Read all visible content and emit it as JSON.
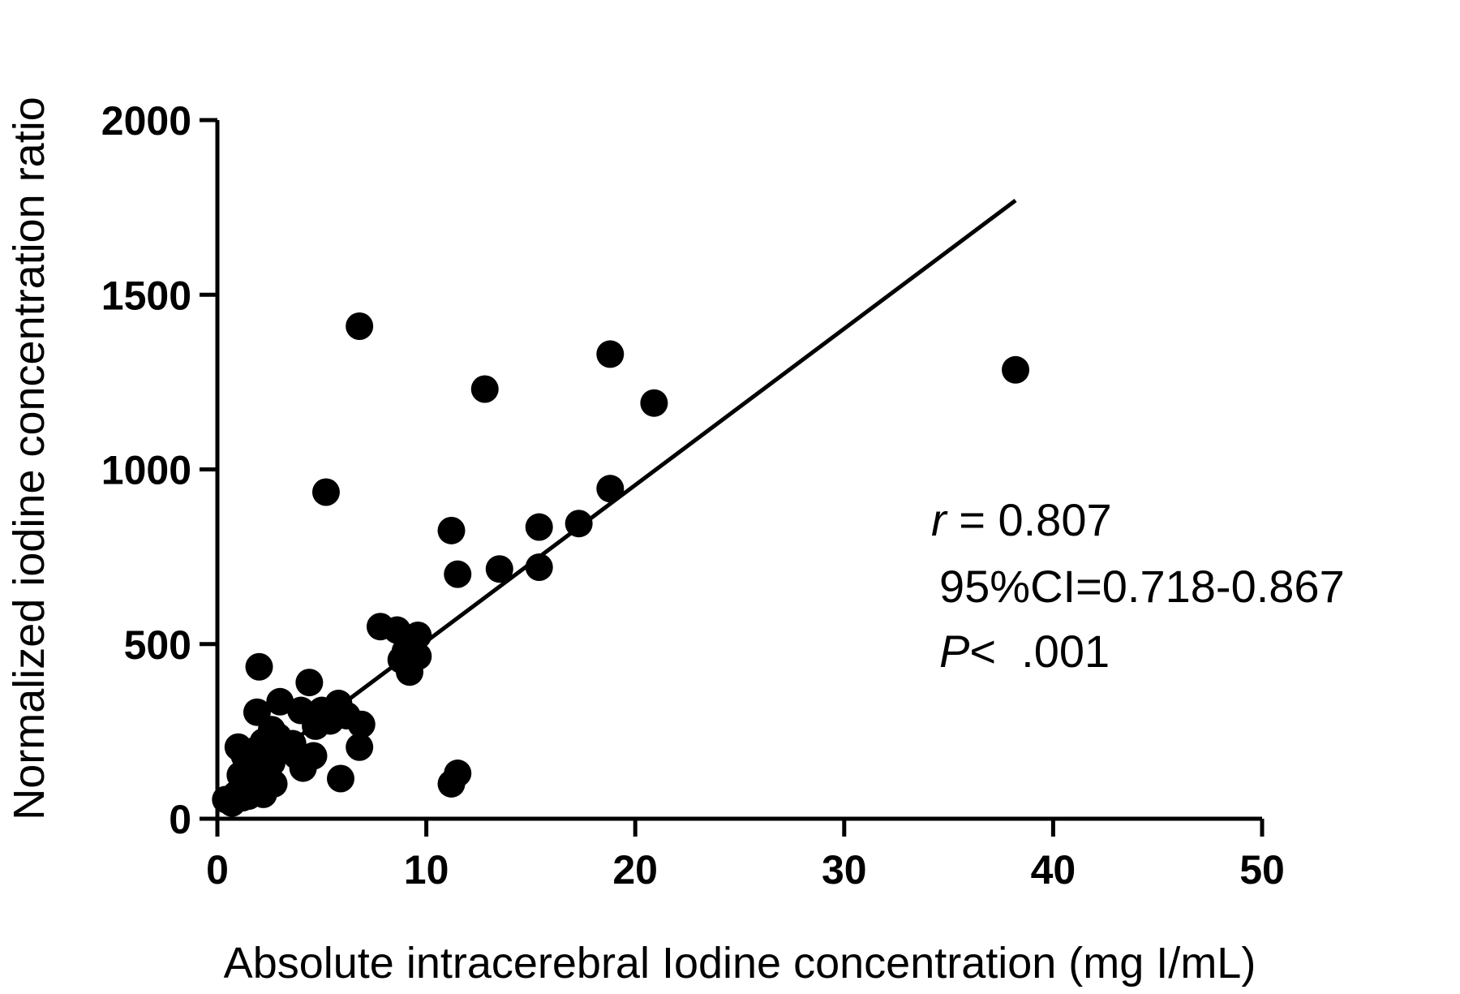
{
  "chart_data": {
    "type": "scatter",
    "xlabel": "Absolute intracerebral Iodine concentration (mg I/mL)",
    "ylabel": "Normalized iodine concentration ratio",
    "xlim": [
      0,
      50
    ],
    "ylim": [
      0,
      2000
    ],
    "xticks": [
      "0",
      "10",
      "20",
      "30",
      "40",
      "50"
    ],
    "yticks": [
      "0",
      "500",
      "1000",
      "1500",
      "2000"
    ],
    "grid": false,
    "points": [
      {
        "x": 6.8,
        "y": 1410
      },
      {
        "x": 18.8,
        "y": 1330
      },
      {
        "x": 38.2,
        "y": 1285
      },
      {
        "x": 12.8,
        "y": 1230
      },
      {
        "x": 20.9,
        "y": 1190
      },
      {
        "x": 5.2,
        "y": 935
      },
      {
        "x": 18.8,
        "y": 945
      },
      {
        "x": 11.2,
        "y": 825
      },
      {
        "x": 15.4,
        "y": 835
      },
      {
        "x": 17.3,
        "y": 845
      },
      {
        "x": 11.5,
        "y": 700
      },
      {
        "x": 13.5,
        "y": 715
      },
      {
        "x": 15.4,
        "y": 720
      },
      {
        "x": 7.8,
        "y": 550
      },
      {
        "x": 8.6,
        "y": 540
      },
      {
        "x": 9.6,
        "y": 525
      },
      {
        "x": 9.0,
        "y": 480
      },
      {
        "x": 8.8,
        "y": 455
      },
      {
        "x": 9.6,
        "y": 465
      },
      {
        "x": 9.2,
        "y": 420
      },
      {
        "x": 2.0,
        "y": 435
      },
      {
        "x": 4.4,
        "y": 390
      },
      {
        "x": 3.0,
        "y": 335
      },
      {
        "x": 5.8,
        "y": 330
      },
      {
        "x": 5.0,
        "y": 310
      },
      {
        "x": 4.0,
        "y": 310
      },
      {
        "x": 1.9,
        "y": 305
      },
      {
        "x": 6.2,
        "y": 295
      },
      {
        "x": 6.9,
        "y": 270
      },
      {
        "x": 5.4,
        "y": 280
      },
      {
        "x": 4.7,
        "y": 265
      },
      {
        "x": 2.6,
        "y": 255
      },
      {
        "x": 2.2,
        "y": 220
      },
      {
        "x": 3.6,
        "y": 215
      },
      {
        "x": 1.0,
        "y": 205
      },
      {
        "x": 1.8,
        "y": 195
      },
      {
        "x": 6.8,
        "y": 205
      },
      {
        "x": 4.6,
        "y": 180
      },
      {
        "x": 3.8,
        "y": 180
      },
      {
        "x": 2.6,
        "y": 160
      },
      {
        "x": 1.6,
        "y": 150
      },
      {
        "x": 4.1,
        "y": 145
      },
      {
        "x": 11.5,
        "y": 130
      },
      {
        "x": 2.2,
        "y": 130
      },
      {
        "x": 1.1,
        "y": 125
      },
      {
        "x": 5.9,
        "y": 115
      },
      {
        "x": 11.2,
        "y": 100
      },
      {
        "x": 2.7,
        "y": 100
      },
      {
        "x": 1.5,
        "y": 100
      },
      {
        "x": 1.9,
        "y": 85
      },
      {
        "x": 2.2,
        "y": 70
      },
      {
        "x": 0.9,
        "y": 70
      },
      {
        "x": 1.2,
        "y": 60
      },
      {
        "x": 0.4,
        "y": 55
      },
      {
        "x": 0.7,
        "y": 45
      },
      {
        "x": 1.5,
        "y": 65
      },
      {
        "x": 1.3,
        "y": 180
      },
      {
        "x": 2.9,
        "y": 235
      },
      {
        "x": 3.3,
        "y": 200
      },
      {
        "x": 2.0,
        "y": 200
      }
    ],
    "fit_line": {
      "x": [
        0,
        38.2
      ],
      "y": [
        60,
        1770
      ]
    },
    "annotations": {
      "r_symbol": "r",
      "r_value": " = 0.807",
      "ci": "95%CI=0.718-0.867",
      "p_symbol": "P",
      "p_value": "<  .001"
    }
  }
}
